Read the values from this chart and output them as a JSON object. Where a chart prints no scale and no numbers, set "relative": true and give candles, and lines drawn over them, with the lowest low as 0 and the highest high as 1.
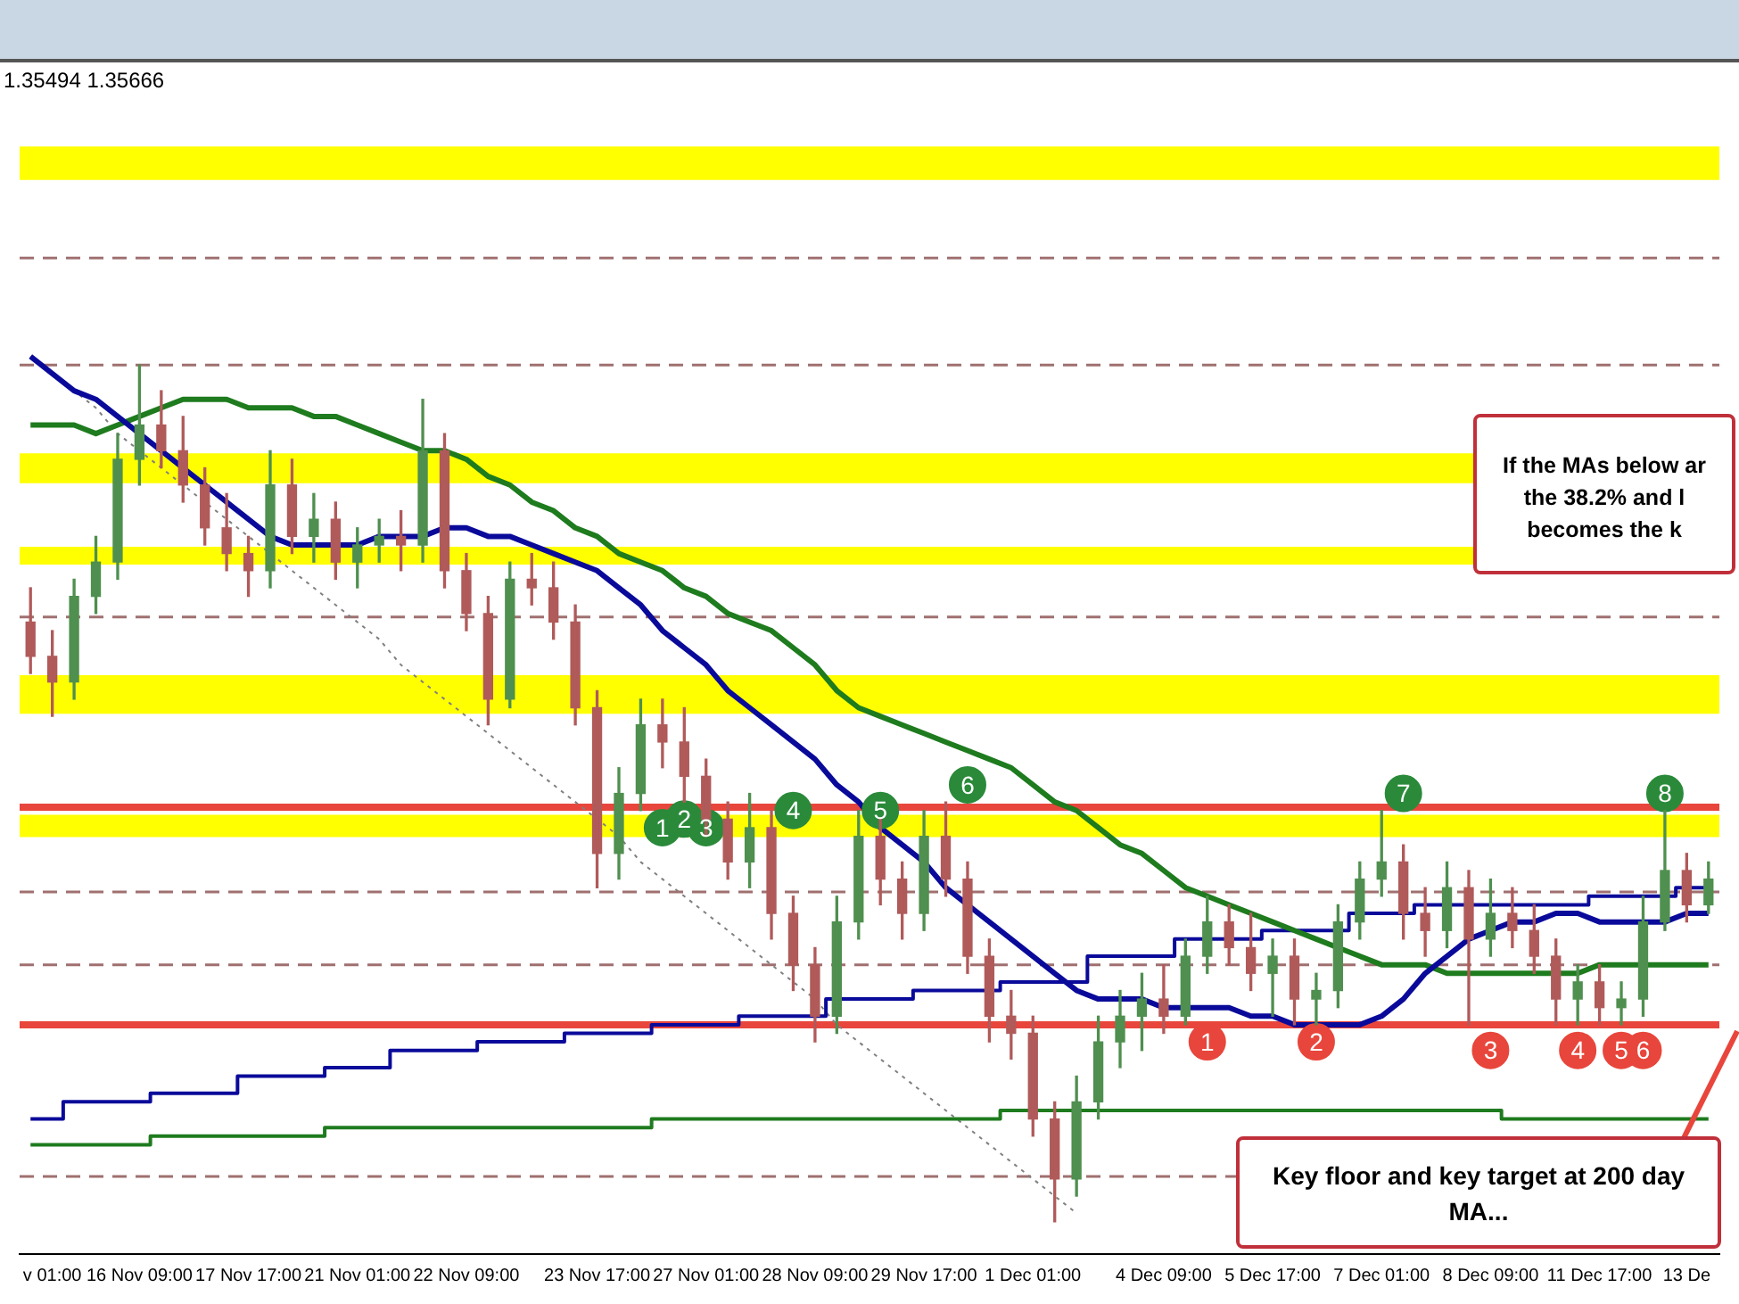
{
  "chart_data": {
    "type": "candlestick",
    "relative": true,
    "grid": false,
    "legend": false,
    "annotations": [
      "1.35494 1.35666",
      "If the MAs below ar\nthe 38.2% and l\nbecomes the k",
      "Key floor and key target at 200 day MA...",
      {
        "text": "1",
        "y": 0.46
      },
      {
        "text": "2",
        "y": 0.47
      },
      {
        "text": "3",
        "y": 0.46
      },
      {
        "text": "4",
        "y": 0.48
      },
      {
        "text": "5",
        "y": 0.48
      },
      {
        "text": "6",
        "y": 0.51
      },
      {
        "text": "7",
        "y": 0.5
      },
      {
        "text": "8",
        "y": 0.5
      },
      {
        "text": "1",
        "y": 0.21
      },
      {
        "text": "2",
        "y": 0.21
      },
      {
        "text": "3",
        "y": 0.2
      },
      {
        "text": "4",
        "y": 0.2
      },
      {
        "text": "5",
        "y": 0.2
      },
      {
        "text": "6",
        "y": 0.2
      }
    ],
    "categories": [
      null,
      "v 01:00",
      null,
      null,
      null,
      "16 Nov 09:00",
      null,
      null,
      null,
      null,
      "17 Nov 17:00",
      null,
      null,
      null,
      null,
      "21 Nov 01:00",
      null,
      null,
      null,
      null,
      "22 Nov 09:00",
      null,
      null,
      null,
      null,
      null,
      "23 Nov 17:00",
      null,
      null,
      null,
      null,
      "27 Nov 01:00",
      null,
      null,
      null,
      null,
      "28 Nov 09:00",
      null,
      null,
      null,
      null,
      "29 Nov 17:00",
      null,
      null,
      null,
      null,
      "1 Dec 01:00",
      null,
      null,
      null,
      null,
      null,
      "4 Dec 09:00",
      null,
      null,
      null,
      null,
      "5 Dec 17:00",
      null,
      null,
      null,
      null,
      "7 Dec 01:00",
      null,
      null,
      null,
      null,
      "8 Dec 09:00",
      null,
      null,
      null,
      null,
      "11 Dec 17:00",
      null,
      null,
      null,
      "13 De",
      null
    ],
    "bands": [
      {
        "axis": "y",
        "from": 1.216,
        "to": 1.255,
        "color": "#ffff00"
      },
      {
        "axis": "y",
        "from": 0.862,
        "to": 0.897,
        "color": "#ffff00"
      },
      {
        "axis": "y",
        "from": 0.767,
        "to": 0.788,
        "color": "#ffff00"
      },
      {
        "axis": "y",
        "from": 0.593,
        "to": 0.638,
        "color": "#ffff00"
      },
      {
        "axis": "y",
        "from": 0.449,
        "to": 0.475,
        "color": "#ffff00"
      }
    ],
    "ref_lines": [
      {
        "axis": "y",
        "value": 1.125,
        "color": "#a07070",
        "line_style": "dashed"
      },
      {
        "axis": "y",
        "value": 1.0,
        "color": "#a07070",
        "line_style": "dashed"
      },
      {
        "axis": "y",
        "value": 0.706,
        "color": "#a07070",
        "line_style": "dashed"
      },
      {
        "axis": "y",
        "value": 0.484,
        "color": "#e8463c",
        "line_style": "solid"
      },
      {
        "axis": "y",
        "value": 0.385,
        "color": "#a07070",
        "line_style": "dashed"
      },
      {
        "axis": "y",
        "value": 0.3,
        "color": "#a07070",
        "line_style": "dashed"
      },
      {
        "axis": "y",
        "value": 0.23,
        "color": "#e8463c",
        "line_style": "solid"
      },
      {
        "axis": "y",
        "value": 0.053,
        "color": "#a07070",
        "line_style": "dashed"
      }
    ],
    "series": [
      {
        "ohlc": [
          [
            0.7,
            0.74,
            0.64,
            0.66
          ],
          [
            0.66,
            0.69,
            0.59,
            0.63
          ],
          [
            0.63,
            0.75,
            0.61,
            0.73
          ],
          [
            0.73,
            0.8,
            0.71,
            0.77
          ],
          [
            0.77,
            0.92,
            0.75,
            0.89
          ],
          [
            0.89,
            1.0,
            0.86,
            0.93
          ],
          [
            0.93,
            0.97,
            0.88,
            0.9
          ],
          [
            0.9,
            0.94,
            0.84,
            0.86
          ],
          [
            0.86,
            0.88,
            0.79,
            0.81
          ],
          [
            0.81,
            0.85,
            0.76,
            0.78
          ],
          [
            0.78,
            0.8,
            0.73,
            0.76
          ],
          [
            0.76,
            0.9,
            0.74,
            0.86
          ],
          [
            0.86,
            0.89,
            0.78,
            0.8
          ],
          [
            0.8,
            0.85,
            0.77,
            0.82
          ],
          [
            0.82,
            0.84,
            0.75,
            0.77
          ],
          [
            0.77,
            0.81,
            0.74,
            0.79
          ],
          [
            0.79,
            0.82,
            0.77,
            0.8
          ],
          [
            0.8,
            0.83,
            0.76,
            0.79
          ],
          [
            0.79,
            0.96,
            0.77,
            0.9
          ],
          [
            0.9,
            0.92,
            0.74,
            0.76
          ],
          [
            0.76,
            0.78,
            0.69,
            0.71
          ],
          [
            0.71,
            0.73,
            0.58,
            0.61
          ],
          [
            0.61,
            0.77,
            0.6,
            0.75
          ],
          [
            0.75,
            0.78,
            0.72,
            0.74
          ],
          [
            0.74,
            0.77,
            0.68,
            0.7
          ],
          [
            0.7,
            0.72,
            0.58,
            0.6
          ],
          [
            0.6,
            0.62,
            0.39,
            0.43
          ],
          [
            0.43,
            0.53,
            0.4,
            0.5
          ],
          [
            0.5,
            0.61,
            0.48,
            0.58
          ],
          [
            0.58,
            0.61,
            0.53,
            0.56
          ],
          [
            0.56,
            0.6,
            0.49,
            0.52
          ],
          [
            0.52,
            0.54,
            0.45,
            0.47
          ],
          [
            0.47,
            0.49,
            0.4,
            0.42
          ],
          [
            0.42,
            0.5,
            0.39,
            0.46
          ],
          [
            0.46,
            0.48,
            0.33,
            0.36
          ],
          [
            0.36,
            0.38,
            0.27,
            0.3
          ],
          [
            0.3,
            0.32,
            0.21,
            0.24
          ],
          [
            0.24,
            0.38,
            0.22,
            0.35
          ],
          [
            0.35,
            0.48,
            0.33,
            0.45
          ],
          [
            0.45,
            0.47,
            0.37,
            0.4
          ],
          [
            0.4,
            0.42,
            0.33,
            0.36
          ],
          [
            0.36,
            0.48,
            0.34,
            0.45
          ],
          [
            0.45,
            0.49,
            0.38,
            0.4
          ],
          [
            0.4,
            0.42,
            0.29,
            0.31
          ],
          [
            0.31,
            0.33,
            0.21,
            0.24
          ],
          [
            0.24,
            0.27,
            0.19,
            0.22
          ],
          [
            0.22,
            0.24,
            0.1,
            0.12
          ],
          [
            0.12,
            0.14,
            0.0,
            0.05
          ],
          [
            0.05,
            0.17,
            0.03,
            0.14
          ],
          [
            0.14,
            0.24,
            0.12,
            0.21
          ],
          [
            0.21,
            0.27,
            0.18,
            0.24
          ],
          [
            0.24,
            0.29,
            0.2,
            0.26
          ],
          [
            0.26,
            0.3,
            0.22,
            0.24
          ],
          [
            0.24,
            0.33,
            0.23,
            0.31
          ],
          [
            0.31,
            0.38,
            0.29,
            0.35
          ],
          [
            0.35,
            0.37,
            0.3,
            0.32
          ],
          [
            0.32,
            0.36,
            0.27,
            0.29
          ],
          [
            0.29,
            0.33,
            0.24,
            0.31
          ],
          [
            0.31,
            0.33,
            0.23,
            0.26
          ],
          [
            0.26,
            0.29,
            0.23,
            0.27
          ],
          [
            0.27,
            0.37,
            0.25,
            0.35
          ],
          [
            0.35,
            0.42,
            0.33,
            0.4
          ],
          [
            0.4,
            0.48,
            0.38,
            0.42
          ],
          [
            0.42,
            0.44,
            0.33,
            0.36
          ],
          [
            0.36,
            0.39,
            0.31,
            0.34
          ],
          [
            0.34,
            0.42,
            0.32,
            0.39
          ],
          [
            0.39,
            0.41,
            0.23,
            0.33
          ],
          [
            0.33,
            0.4,
            0.31,
            0.36
          ],
          [
            0.36,
            0.39,
            0.32,
            0.34
          ],
          [
            0.34,
            0.37,
            0.29,
            0.31
          ],
          [
            0.31,
            0.33,
            0.23,
            0.26
          ],
          [
            0.26,
            0.3,
            0.23,
            0.28
          ],
          [
            0.28,
            0.3,
            0.23,
            0.25
          ],
          [
            0.25,
            0.28,
            0.23,
            0.26
          ],
          [
            0.26,
            0.38,
            0.24,
            0.35
          ],
          [
            0.35,
            0.48,
            0.34,
            0.41
          ],
          [
            0.41,
            0.43,
            0.35,
            0.37
          ],
          [
            0.37,
            0.42,
            0.36,
            0.4
          ]
        ],
        "colors": [
          "#b05a5a",
          "#b05a5a",
          "#4f8f4f",
          "#4f8f4f",
          "#4f8f4f",
          "#4f8f4f",
          "#b05a5a",
          "#b05a5a",
          "#b05a5a",
          "#b05a5a",
          "#b05a5a",
          "#4f8f4f",
          "#b05a5a",
          "#4f8f4f",
          "#b05a5a",
          "#4f8f4f",
          "#4f8f4f",
          "#b05a5a",
          "#4f8f4f",
          "#b05a5a",
          "#b05a5a",
          "#b05a5a",
          "#4f8f4f",
          "#b05a5a",
          "#b05a5a",
          "#b05a5a",
          "#b05a5a",
          "#4f8f4f",
          "#4f8f4f",
          "#b05a5a",
          "#b05a5a",
          "#b05a5a",
          "#b05a5a",
          "#4f8f4f",
          "#b05a5a",
          "#b05a5a",
          "#b05a5a",
          "#4f8f4f",
          "#4f8f4f",
          "#b05a5a",
          "#b05a5a",
          "#4f8f4f",
          "#b05a5a",
          "#b05a5a",
          "#b05a5a",
          "#b05a5a",
          "#b05a5a",
          "#b05a5a",
          "#4f8f4f",
          "#4f8f4f",
          "#4f8f4f",
          "#4f8f4f",
          "#b05a5a",
          "#4f8f4f",
          "#4f8f4f",
          "#b05a5a",
          "#b05a5a",
          "#4f8f4f",
          "#b05a5a",
          "#4f8f4f",
          "#4f8f4f",
          "#4f8f4f",
          "#4f8f4f",
          "#b05a5a",
          "#b05a5a",
          "#4f8f4f",
          "#b05a5a",
          "#4f8f4f",
          "#b05a5a",
          "#b05a5a",
          "#b05a5a",
          "#4f8f4f",
          "#b05a5a",
          "#4f8f4f",
          "#4f8f4f",
          "#4f8f4f",
          "#b05a5a",
          "#4f8f4f"
        ]
      },
      {
        "type": "line",
        "color": "#0a0a9a",
        "values": [
          1.01,
          0.99,
          0.97,
          0.96,
          0.94,
          0.92,
          0.9,
          0.88,
          0.86,
          0.84,
          0.82,
          0.8,
          0.79,
          0.79,
          0.79,
          0.79,
          0.8,
          0.8,
          0.8,
          0.81,
          0.81,
          0.8,
          0.8,
          0.79,
          0.78,
          0.77,
          0.76,
          0.74,
          0.72,
          0.69,
          0.67,
          0.65,
          0.62,
          0.6,
          0.58,
          0.56,
          0.54,
          0.51,
          0.49,
          0.46,
          0.44,
          0.42,
          0.39,
          0.37,
          0.35,
          0.33,
          0.31,
          0.29,
          0.27,
          0.26,
          0.26,
          0.26,
          0.25,
          0.25,
          0.25,
          0.25,
          0.24,
          0.24,
          0.23,
          0.23,
          0.23,
          0.23,
          0.24,
          0.26,
          0.29,
          0.31,
          0.33,
          0.34,
          0.35,
          0.35,
          0.36,
          0.36,
          0.35,
          0.35,
          0.35,
          0.35,
          0.36,
          0.36
        ]
      },
      {
        "type": "line",
        "color": "#1e7b1e",
        "values": [
          0.93,
          0.93,
          0.93,
          0.92,
          0.93,
          0.94,
          0.95,
          0.96,
          0.96,
          0.96,
          0.95,
          0.95,
          0.95,
          0.94,
          0.94,
          0.93,
          0.92,
          0.91,
          0.9,
          0.9,
          0.89,
          0.87,
          0.86,
          0.84,
          0.83,
          0.81,
          0.8,
          0.78,
          0.77,
          0.76,
          0.74,
          0.73,
          0.71,
          0.7,
          0.69,
          0.67,
          0.65,
          0.62,
          0.6,
          0.59,
          0.58,
          0.57,
          0.56,
          0.55,
          0.54,
          0.53,
          0.51,
          0.49,
          0.48,
          0.46,
          0.44,
          0.43,
          0.41,
          0.39,
          0.38,
          0.37,
          0.36,
          0.35,
          0.34,
          0.33,
          0.32,
          0.31,
          0.3,
          0.3,
          0.3,
          0.29,
          0.29,
          0.29,
          0.29,
          0.29,
          0.29,
          0.29,
          0.3,
          0.3,
          0.3,
          0.3,
          0.3,
          0.3
        ]
      },
      {
        "type": "step",
        "color": "#0a0a9a",
        "values": [
          0.12,
          0.12,
          0.14,
          0.14,
          0.14,
          0.14,
          0.15,
          0.15,
          0.15,
          0.15,
          0.17,
          0.17,
          0.17,
          0.17,
          0.18,
          0.18,
          0.18,
          0.2,
          0.2,
          0.2,
          0.2,
          0.21,
          0.21,
          0.21,
          0.21,
          0.22,
          0.22,
          0.22,
          0.22,
          0.23,
          0.23,
          0.23,
          0.23,
          0.24,
          0.24,
          0.24,
          0.24,
          0.26,
          0.26,
          0.26,
          0.26,
          0.27,
          0.27,
          0.27,
          0.27,
          0.28,
          0.28,
          0.28,
          0.28,
          0.31,
          0.31,
          0.31,
          0.31,
          0.33,
          0.33,
          0.33,
          0.33,
          0.34,
          0.34,
          0.34,
          0.34,
          0.36,
          0.36,
          0.36,
          0.37,
          0.37,
          0.37,
          0.37,
          0.37,
          0.37,
          0.37,
          0.37,
          0.38,
          0.38,
          0.38,
          0.38,
          0.39,
          0.39
        ]
      },
      {
        "type": "step",
        "color": "#1e7b1e",
        "values": [
          0.09,
          0.09,
          0.09,
          0.09,
          0.09,
          0.09,
          0.1,
          0.1,
          0.1,
          0.1,
          0.1,
          0.1,
          0.1,
          0.1,
          0.11,
          0.11,
          0.11,
          0.11,
          0.11,
          0.11,
          0.11,
          0.11,
          0.11,
          0.11,
          0.11,
          0.11,
          0.11,
          0.11,
          0.11,
          0.12,
          0.12,
          0.12,
          0.12,
          0.12,
          0.12,
          0.12,
          0.12,
          0.12,
          0.12,
          0.12,
          0.12,
          0.12,
          0.12,
          0.12,
          0.12,
          0.13,
          0.13,
          0.13,
          0.13,
          0.13,
          0.13,
          0.13,
          0.13,
          0.13,
          0.13,
          0.13,
          0.13,
          0.13,
          0.13,
          0.13,
          0.13,
          0.13,
          0.13,
          0.13,
          0.13,
          0.13,
          0.13,
          0.13,
          0.12,
          0.12,
          0.12,
          0.12,
          0.12,
          0.12,
          0.12,
          0.12,
          0.12,
          0.12
        ]
      },
      {
        "type": "line",
        "color": "#808080",
        "line_style": "dotted",
        "values": [
          1.01,
          0.99,
          0.97,
          0.95,
          0.92,
          0.9,
          0.88,
          0.86,
          0.84,
          0.82,
          0.8,
          0.78,
          0.76,
          0.74,
          0.72,
          0.7,
          0.68,
          0.65,
          0.63,
          0.61,
          0.59,
          0.57,
          0.55,
          0.53,
          0.51,
          0.49,
          0.47,
          0.45,
          0.42,
          0.4,
          0.38,
          0.36,
          0.34,
          0.32,
          0.3,
          0.28,
          0.26,
          0.23,
          0.21,
          0.19,
          0.17,
          0.15,
          0.13,
          0.11,
          0.09,
          0.07,
          0.05,
          0.03,
          0.01,
          null,
          null,
          null,
          null,
          null,
          null,
          null,
          null,
          null,
          null,
          null,
          null,
          null,
          null,
          null,
          null,
          null,
          null,
          null,
          null,
          null,
          null,
          null,
          null,
          null,
          null,
          null,
          null,
          null
        ]
      },
      {
        "type": "scatter",
        "color": "#2a8a3a",
        "values": [
          null,
          null,
          null,
          null,
          null,
          null,
          null,
          null,
          null,
          null,
          null,
          null,
          null,
          null,
          null,
          null,
          null,
          null,
          null,
          null,
          null,
          null,
          null,
          null,
          null,
          null,
          null,
          null,
          null,
          0.46,
          0.47,
          0.46,
          null,
          null,
          null,
          0.48,
          null,
          null,
          null,
          0.48,
          null,
          null,
          null,
          0.51,
          null,
          null,
          null,
          null,
          null,
          null,
          null,
          null,
          null,
          null,
          null,
          null,
          null,
          null,
          null,
          null,
          null,
          null,
          null,
          0.5,
          null,
          null,
          null,
          null,
          null,
          null,
          null,
          null,
          null,
          null,
          null,
          0.5,
          null,
          null
        ],
        "marker": "circle"
      },
      {
        "type": "scatter",
        "color": "#e8463c",
        "values": [
          null,
          null,
          null,
          null,
          null,
          null,
          null,
          null,
          null,
          null,
          null,
          null,
          null,
          null,
          null,
          null,
          null,
          null,
          null,
          null,
          null,
          null,
          null,
          null,
          null,
          null,
          null,
          null,
          null,
          null,
          null,
          null,
          null,
          null,
          null,
          null,
          null,
          null,
          null,
          null,
          null,
          null,
          null,
          null,
          null,
          null,
          null,
          null,
          null,
          null,
          null,
          null,
          null,
          null,
          0.21,
          null,
          null,
          null,
          null,
          0.21,
          null,
          null,
          null,
          null,
          null,
          null,
          null,
          0.2,
          null,
          null,
          null,
          0.2,
          null,
          0.2,
          0.2,
          null,
          null,
          null
        ],
        "marker": "circle"
      }
    ]
  }
}
